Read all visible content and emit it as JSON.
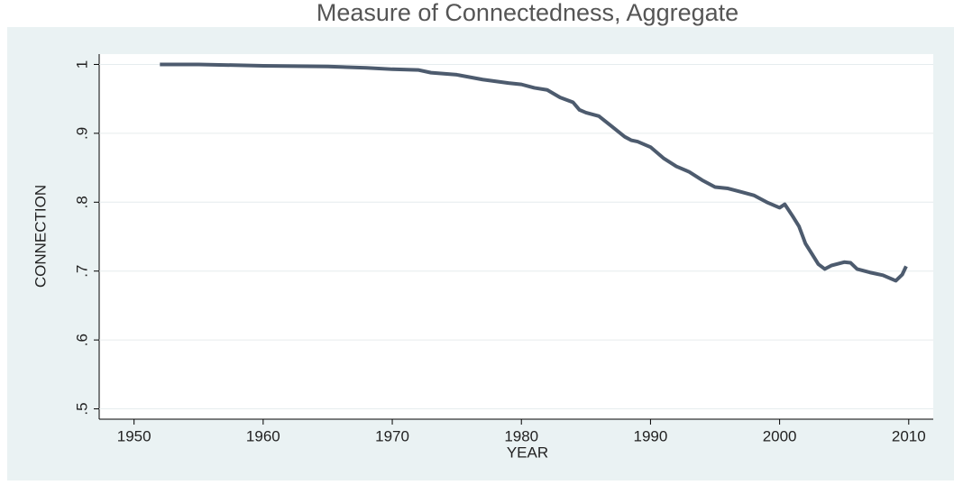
{
  "chart_data": {
    "type": "line",
    "title": "Measure of Connectedness, Aggregate",
    "x_label": "YEAR",
    "y_label": "CONNECTION",
    "xlim": [
      1947.3,
      2011.9
    ],
    "xticks": [
      1950,
      1960,
      1970,
      1980,
      1990,
      2000,
      2010
    ],
    "ylim": [
      0.485,
      1.015
    ],
    "yticks": [
      {
        "value": 0.5,
        "label": ".5"
      },
      {
        "value": 0.6,
        "label": ".6"
      },
      {
        "value": 0.7,
        "label": ".7"
      },
      {
        "value": 0.8,
        "label": ".8"
      },
      {
        "value": 0.9,
        "label": ".9"
      },
      1
    ],
    "grid": true,
    "series": [
      {
        "color": "#4d5b6e",
        "x": [
          1952,
          1955,
          1960,
          1965,
          1968,
          1970,
          1972,
          1973,
          1975,
          1977,
          1979,
          1980,
          1981,
          1982,
          1983,
          1984,
          1984.5,
          1985,
          1986,
          1987,
          1988,
          1988.5,
          1989,
          1990,
          1991,
          1992,
          1993,
          1994,
          1995,
          1996,
          1997,
          1998,
          1999,
          2000,
          2000.4,
          2001,
          2001.5,
          2002,
          2002.5,
          2003,
          2003.5,
          2004,
          2005,
          2005.5,
          2006,
          2007,
          2008,
          2009,
          2009.5,
          2009.8
        ],
        "values": [
          1.0,
          1.0,
          0.998,
          0.997,
          0.995,
          0.993,
          0.992,
          0.988,
          0.985,
          0.978,
          0.973,
          0.971,
          0.966,
          0.963,
          0.952,
          0.945,
          0.934,
          0.93,
          0.925,
          0.91,
          0.895,
          0.89,
          0.888,
          0.88,
          0.864,
          0.852,
          0.844,
          0.832,
          0.822,
          0.82,
          0.815,
          0.81,
          0.8,
          0.792,
          0.797,
          0.78,
          0.765,
          0.74,
          0.725,
          0.71,
          0.703,
          0.708,
          0.713,
          0.712,
          0.703,
          0.698,
          0.694,
          0.686,
          0.695,
          0.707
        ]
      }
    ]
  }
}
